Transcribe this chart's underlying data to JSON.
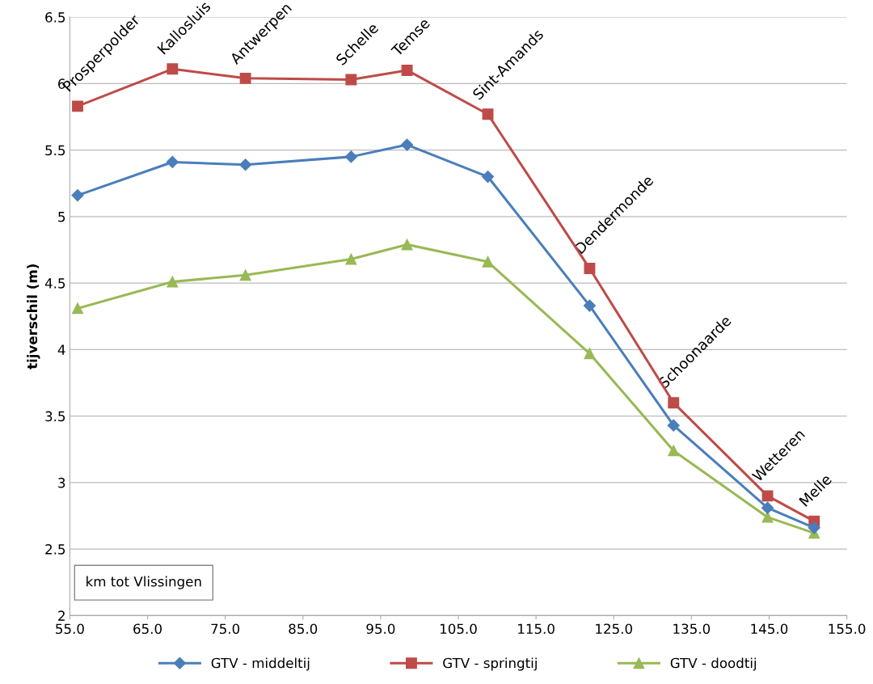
{
  "chart_data": {
    "type": "line",
    "ylabel": "tijverschil (m)",
    "xlabel": "km tot Vlissingen",
    "x": [
      56.0,
      68.2,
      77.6,
      91.2,
      98.4,
      108.8,
      121.9,
      132.7,
      144.8,
      150.8
    ],
    "series": [
      {
        "name": "GTV - middeltij",
        "color": "#4a7ebb",
        "marker": "diamond",
        "values": [
          5.16,
          5.41,
          5.39,
          5.45,
          5.54,
          5.3,
          4.33,
          3.43,
          2.81,
          2.66
        ]
      },
      {
        "name": "GTV - springtij",
        "color": "#be4b48",
        "marker": "square",
        "values": [
          5.83,
          6.11,
          6.04,
          6.03,
          6.1,
          5.77,
          4.61,
          3.6,
          2.9,
          2.71
        ]
      },
      {
        "name": "GTV - doodtij",
        "color": "#98b954",
        "marker": "triangle",
        "values": [
          4.31,
          4.51,
          4.56,
          4.68,
          4.79,
          4.66,
          3.97,
          3.24,
          2.74,
          2.62
        ]
      }
    ],
    "annotations": [
      {
        "text": "Prosperpolder",
        "x": 56.0,
        "y": 5.83
      },
      {
        "text": "Kallosluis",
        "x": 68.2,
        "y": 6.11
      },
      {
        "text": "Antwerpen",
        "x": 77.6,
        "y": 6.04
      },
      {
        "text": "Schelle",
        "x": 91.2,
        "y": 6.03
      },
      {
        "text": "Temse",
        "x": 98.4,
        "y": 6.1
      },
      {
        "text": "Sint-Amands",
        "x": 108.8,
        "y": 5.77
      },
      {
        "text": "Dendermonde",
        "x": 121.9,
        "y": 4.61
      },
      {
        "text": "Schoonaarde",
        "x": 132.7,
        "y": 3.6
      },
      {
        "text": "Wetteren",
        "x": 144.8,
        "y": 2.9
      },
      {
        "text": "Melle",
        "x": 150.8,
        "y": 2.71
      }
    ],
    "xlim": [
      55,
      155
    ],
    "xticks": [
      {
        "value": 55,
        "label": "55.0"
      },
      {
        "value": 65,
        "label": "65.0"
      },
      {
        "value": 75,
        "label": "75.0"
      },
      {
        "value": 85,
        "label": "85.0"
      },
      {
        "value": 95,
        "label": "95.0"
      },
      {
        "value": 105,
        "label": "105.0"
      },
      {
        "value": 115,
        "label": "115.0"
      },
      {
        "value": 125,
        "label": "125.0"
      },
      {
        "value": 135,
        "label": "135.0"
      },
      {
        "value": 145,
        "label": "145.0"
      },
      {
        "value": 155,
        "label": "155.0"
      }
    ],
    "ylim": [
      2,
      6.5
    ],
    "yticks": [
      2,
      2.5,
      3,
      3.5,
      4,
      4.5,
      5,
      5.5,
      6,
      6.5
    ],
    "grid": "y",
    "legend": "bottom",
    "line_style": "solid"
  }
}
